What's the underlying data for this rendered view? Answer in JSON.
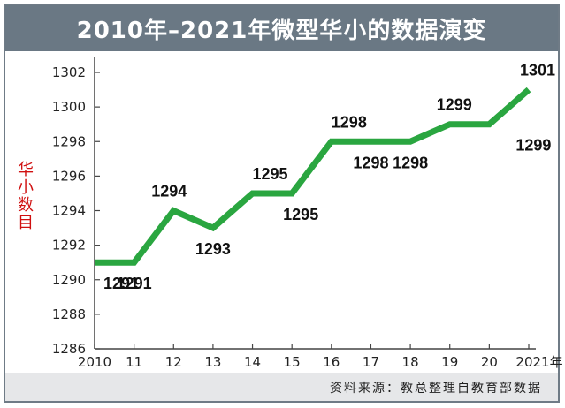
{
  "chart_data": {
    "type": "line",
    "title": "2010年–2021年微型华小的数据演变",
    "ylabel": "华小数目",
    "xlabel": "",
    "x": [
      "2010",
      "11",
      "12",
      "13",
      "14",
      "15",
      "16",
      "17",
      "18",
      "19",
      "20",
      "2021年"
    ],
    "series": [
      {
        "name": "华小数目",
        "values": [
          1291,
          1291,
          1294,
          1293,
          1295,
          1295,
          1298,
          1298,
          1298,
          1299,
          1299,
          1301
        ]
      }
    ],
    "data_labels": [
      "1291",
      "1291",
      "1294",
      "1293",
      "1295",
      "1295",
      "1298",
      "1298",
      "1298",
      "1299",
      "1299",
      "1301"
    ],
    "yticks": [
      "1286",
      "1288",
      "1290",
      "1292",
      "1294",
      "1296",
      "1298",
      "1300",
      "1302"
    ],
    "ylim": [
      1286,
      1302
    ],
    "grid": false,
    "line_color": "#2aa640",
    "axis_color": "#444444",
    "source": "资料来源：教总整理自教育部数据"
  }
}
